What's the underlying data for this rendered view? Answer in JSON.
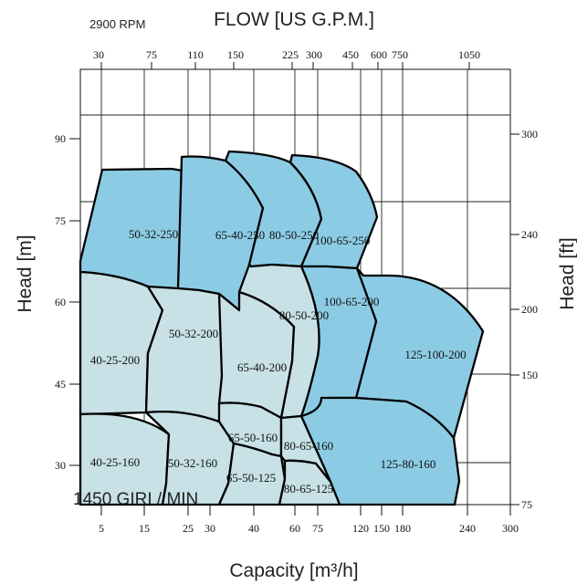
{
  "chart_data": {
    "type": "area",
    "speed_label": "2900 RPM",
    "overlay_text": "1450 GIRI / MIN",
    "top_axis": {
      "title": "FLOW [US G.P.M.]",
      "ticks": [
        "30",
        "75",
        "110",
        "150",
        "225",
        "300",
        "450",
        "600",
        "750",
        "1050"
      ]
    },
    "bottom_axis": {
      "title": "Capacity [m³/h]",
      "ticks": [
        "5",
        "15",
        "25",
        "30",
        "40",
        "60",
        "75",
        "120",
        "150",
        "180",
        "240",
        "300"
      ]
    },
    "left_axis": {
      "title": "Head [m]",
      "ticks": [
        "90",
        "75",
        "60",
        "45",
        "30"
      ]
    },
    "right_axis": {
      "title": "Head [ft]",
      "ticks": [
        "300",
        "240",
        "200",
        "150",
        "75"
      ]
    },
    "series": [
      {
        "name": "50-32-250",
        "color": "#8ccbe4"
      },
      {
        "name": "65-40-250",
        "color": "#8ccbe4"
      },
      {
        "name": "80-50-250",
        "color": "#8ccbe4"
      },
      {
        "name": "100-65-250",
        "color": "#8ccbe4"
      },
      {
        "name": "125-100-200",
        "color": "#8ccbe4"
      },
      {
        "name": "100-65-200",
        "color": "#8ccbe4"
      },
      {
        "name": "125-80-160",
        "color": "#8ccbe4"
      },
      {
        "name": "40-25-200",
        "color": "#c7e1e6"
      },
      {
        "name": "50-32-200",
        "color": "#c7e1e6"
      },
      {
        "name": "65-40-200",
        "color": "#c7e1e6"
      },
      {
        "name": "80-50-200",
        "color": "#c7e1e6"
      },
      {
        "name": "40-25-160",
        "color": "#c7e1e6"
      },
      {
        "name": "50-32-160",
        "color": "#c7e1e6"
      },
      {
        "name": "65-50-160",
        "color": "#c7e1e6"
      },
      {
        "name": "65-50-125",
        "color": "#c7e1e6"
      },
      {
        "name": "80-65-160",
        "color": "#c7e1e6"
      },
      {
        "name": "80-65-125",
        "color": "#c7e1e6"
      }
    ],
    "grid": true
  }
}
